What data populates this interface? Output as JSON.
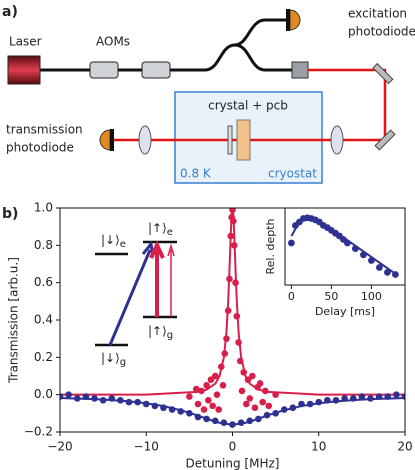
{
  "panels": {
    "a": "a)",
    "b": "b)"
  },
  "diagram": {
    "laser": "Laser",
    "aoms": "AOMs",
    "excitation_photodiode": [
      "excitation",
      "photodiode"
    ],
    "transmission_photodiode": [
      "transmission",
      "photodiode"
    ],
    "crystal": "crystal + pcb",
    "temperature": "0.8 K",
    "cryostat": "cryostat"
  },
  "levels": [
    {
      "ket": "|↓⟩",
      "sub": "e"
    },
    {
      "ket": "|↑⟩",
      "sub": "e"
    },
    {
      "ket": "|↓⟩",
      "sub": "g"
    },
    {
      "ket": "|↑⟩",
      "sub": "g"
    }
  ],
  "chart_data": [
    {
      "type": "scatter",
      "xlabel": "Detuning [MHz]",
      "ylabel": "Transmission [arb.u.]",
      "xlim": [
        -20,
        20
      ],
      "ylim": [
        -0.2,
        1.0
      ],
      "xticks": [
        {
          "value": -20,
          "label": "−20"
        },
        {
          "value": -10,
          "label": "−10"
        },
        0,
        10,
        20
      ],
      "yticks": [
        {
          "value": -0.2,
          "label": "−0.2"
        },
        {
          "value": 0,
          "label": "0.0"
        },
        {
          "value": 0.2,
          "label": "0.2"
        },
        {
          "value": 0.4,
          "label": "0.4"
        },
        {
          "value": 0.6,
          "label": "0.6"
        },
        {
          "value": 0.8,
          "label": "0.8"
        },
        {
          "value": 1.0,
          "label": "1.0"
        }
      ],
      "series": [
        {
          "type": "line",
          "color": "#d81e4a",
          "x": [
            -20,
            -10,
            -6,
            -4,
            -3,
            -2,
            -1.5,
            -1,
            -0.7,
            -0.5,
            -0.35,
            -0.2,
            -0.1,
            0,
            0.1,
            0.2,
            0.35,
            0.5,
            0.7,
            1,
            1.5,
            2,
            3,
            4,
            6,
            10,
            20
          ],
          "values": [
            0.0,
            0.0,
            0.01,
            0.015,
            0.027,
            0.059,
            0.1,
            0.2,
            0.338,
            0.5,
            0.671,
            0.862,
            0.962,
            1.0,
            0.962,
            0.862,
            0.671,
            0.5,
            0.338,
            0.2,
            0.1,
            0.059,
            0.027,
            0.015,
            0.01,
            0.0,
            0.0
          ]
        },
        {
          "type": "line",
          "color": "#2e3192",
          "x": [
            -20,
            -18,
            -16,
            -14,
            -12,
            -10,
            -8,
            -6,
            -5,
            -4,
            -3,
            -2,
            -1,
            0,
            1,
            2,
            3,
            4,
            5,
            6,
            8,
            10,
            12,
            14,
            16,
            18,
            20
          ],
          "values": [
            -0.018,
            -0.021,
            -0.024,
            -0.029,
            -0.036,
            -0.046,
            -0.061,
            -0.083,
            -0.097,
            -0.112,
            -0.129,
            -0.145,
            -0.156,
            -0.16,
            -0.156,
            -0.145,
            -0.129,
            -0.112,
            -0.097,
            -0.083,
            -0.061,
            -0.046,
            -0.036,
            -0.029,
            -0.024,
            -0.021,
            -0.018
          ]
        },
        {
          "type": "scatter",
          "color": "#2e3192",
          "x": [
            -20,
            -19,
            -18,
            -17,
            -16,
            -15,
            -14,
            -13,
            -12,
            -11,
            -10,
            -9,
            -8,
            -7,
            -6,
            -5,
            -4,
            -3,
            -2,
            -1,
            0,
            1,
            2,
            3,
            4,
            5,
            6,
            7,
            8,
            9,
            10,
            11,
            12,
            13,
            14,
            15,
            16,
            17,
            18,
            19,
            20
          ],
          "values": [
            -0.01,
            0.0,
            -0.02,
            -0.01,
            -0.02,
            -0.03,
            -0.02,
            -0.03,
            -0.04,
            -0.04,
            -0.05,
            -0.06,
            -0.07,
            -0.08,
            -0.09,
            -0.1,
            -0.12,
            -0.13,
            -0.14,
            -0.15,
            -0.16,
            -0.15,
            -0.14,
            -0.13,
            -0.11,
            -0.1,
            -0.08,
            -0.07,
            -0.05,
            -0.05,
            -0.04,
            -0.03,
            -0.03,
            -0.02,
            -0.02,
            -0.01,
            -0.02,
            -0.01,
            -0.01,
            0.0,
            -0.01
          ]
        },
        {
          "type": "scatter",
          "color": "#d81e4a",
          "x": [
            -5,
            -4.2,
            -4.0,
            -3.6,
            -3.3,
            -3.0,
            -2.8,
            -2.5,
            -2.3,
            -2.0,
            -1.8,
            -1.6,
            -1.3,
            -1.1,
            -0.9,
            -0.7,
            -0.5,
            -0.35,
            -0.2,
            -0.1,
            0,
            0.1,
            0.2,
            0.35,
            0.5,
            0.7,
            0.9,
            1.1,
            1.3,
            1.6,
            1.8,
            2.0,
            2.3,
            2.6,
            2.9,
            3.2,
            3.5,
            3.8,
            4.2,
            5
          ],
          "values": [
            -0.01,
            0.03,
            -0.05,
            0.02,
            -0.08,
            0.05,
            -0.03,
            0.08,
            -0.06,
            0.1,
            0.0,
            -0.08,
            0.15,
            0.05,
            0.22,
            0.3,
            0.45,
            0.62,
            0.85,
            0.95,
            0.99,
            0.93,
            0.8,
            0.6,
            0.42,
            0.28,
            0.18,
            0.02,
            0.12,
            -0.05,
            0.08,
            -0.02,
            0.1,
            -0.07,
            0.04,
            0.06,
            -0.04,
            0.02,
            -0.06,
            0.0
          ]
        }
      ]
    },
    {
      "type": "scatter",
      "xlabel": "Delay [ms]",
      "ylabel": "Rel. depth",
      "xlim": [
        -8,
        142
      ],
      "ylim": [
        0,
        1.1
      ],
      "xticks": [
        0,
        50,
        100
      ],
      "series": [
        {
          "type": "line",
          "color": "#2e3192",
          "x": [
            0,
            10,
            20,
            30,
            60,
            90,
            120,
            130
          ],
          "values": [
            0.7,
            0.9,
            0.96,
            0.95,
            0.72,
            0.48,
            0.24,
            0.16
          ]
        },
        {
          "type": "scatter",
          "color": "#2e3192",
          "x": [
            0,
            5,
            10,
            15,
            20,
            25,
            30,
            35,
            40,
            45,
            50,
            55,
            60,
            65,
            70,
            80,
            90,
            100,
            110,
            120,
            130
          ],
          "values": [
            0.6,
            0.85,
            0.9,
            0.95,
            0.96,
            0.95,
            0.93,
            0.9,
            0.85,
            0.82,
            0.78,
            0.74,
            0.7,
            0.65,
            0.6,
            0.52,
            0.43,
            0.35,
            0.25,
            0.18,
            0.15
          ]
        }
      ]
    }
  ]
}
